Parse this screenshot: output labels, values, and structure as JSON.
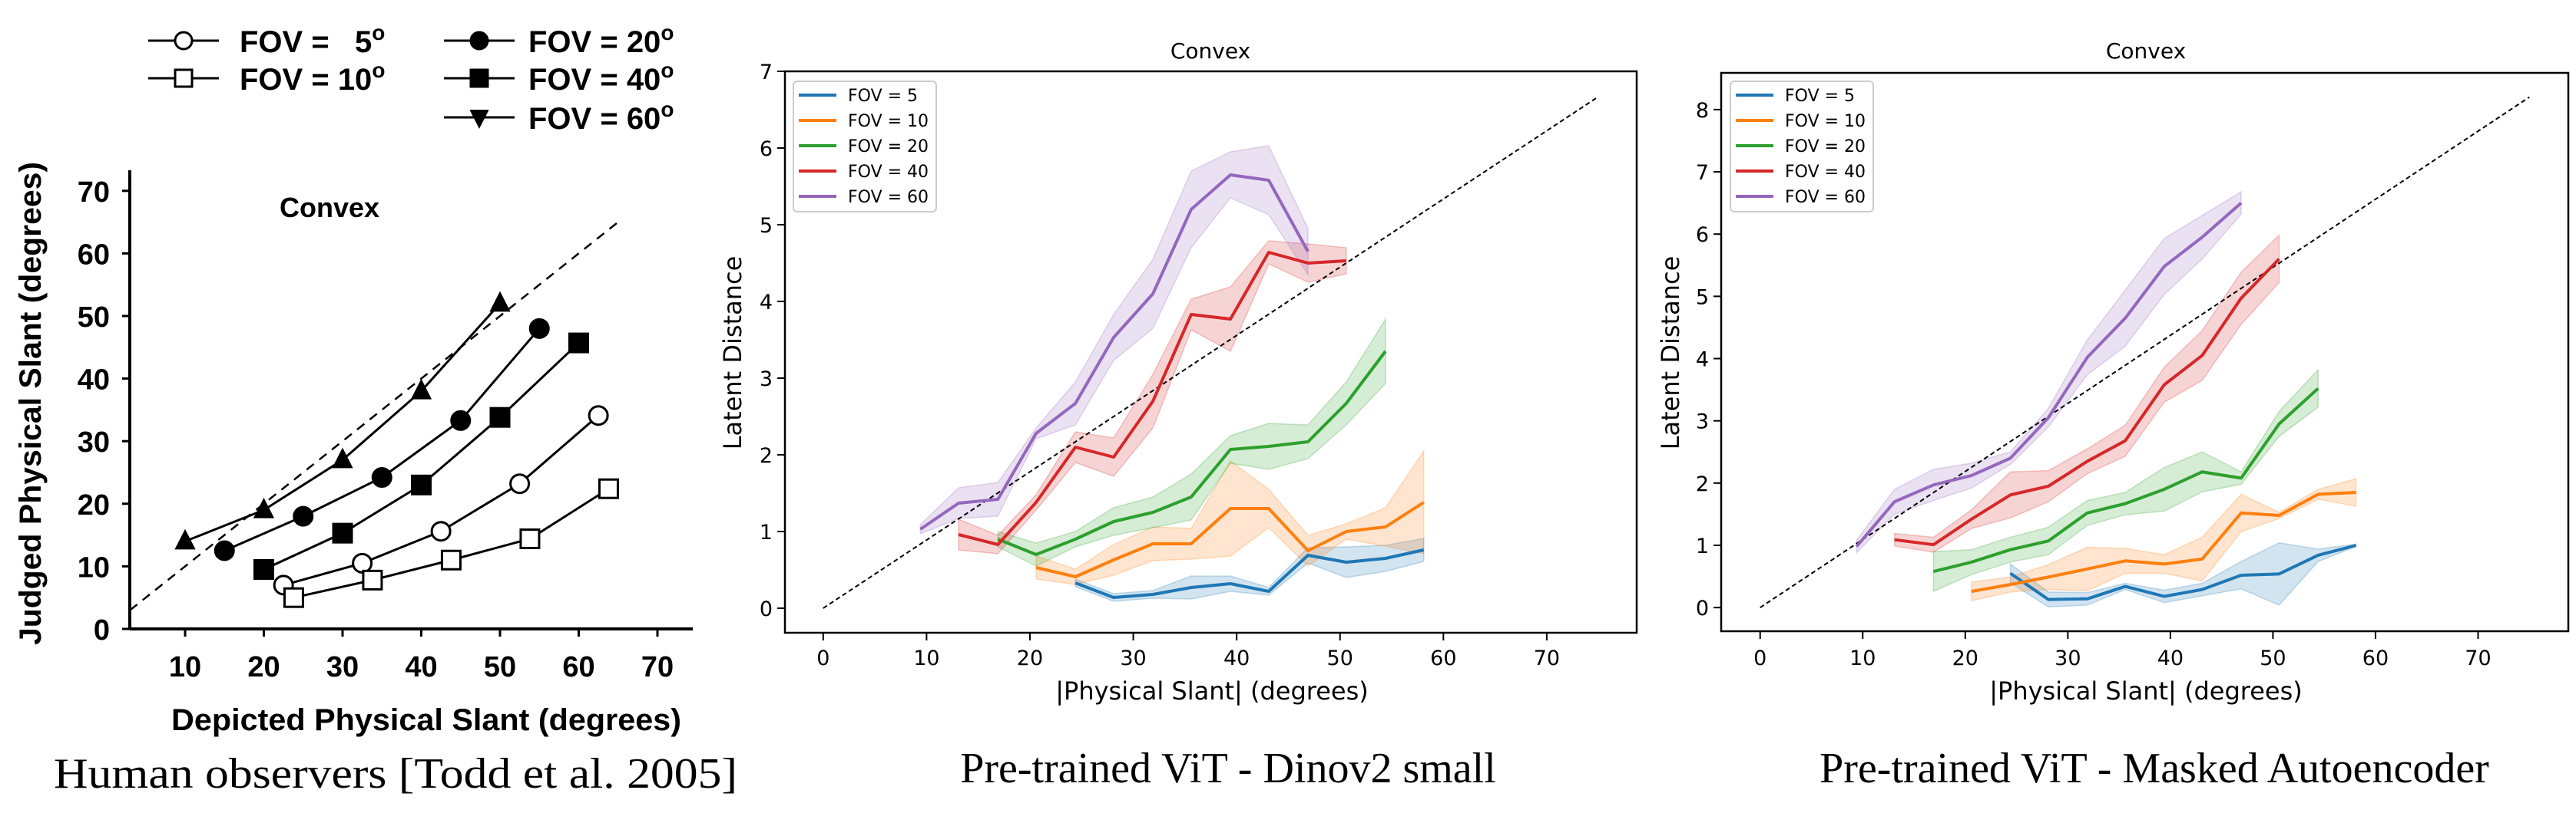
{
  "chart_data": [
    {
      "type": "line",
      "title": "Convex",
      "caption": "Human observers [Todd et al. 2005]",
      "xlabel": "Depicted Physical Slant (degrees)",
      "ylabel": "Judged Physical Slant (degrees)",
      "xlim": [
        2.2,
        74.6
      ],
      "ylim": [
        0,
        72.8
      ],
      "xticks": [
        "10",
        "20",
        "30",
        "40",
        "50",
        "60",
        "70"
      ],
      "xtick_values": [
        10,
        20,
        30,
        40,
        50,
        60,
        70
      ],
      "yticks": [
        "0",
        "10",
        "20",
        "30",
        "40",
        "50",
        "60",
        "70"
      ],
      "ytick_values": [
        0,
        10,
        20,
        30,
        40,
        50,
        60,
        70
      ],
      "reference_line": {
        "style": "dashed",
        "from": [
          3,
          3
        ],
        "to": [
          65,
          65
        ]
      },
      "legend_placement": "top",
      "series": [
        {
          "name": "FOV =   5",
          "deg": "o",
          "marker": "open-circle",
          "x": [
            22.5,
            32.5,
            42.5,
            52.5,
            62.5
          ],
          "y": [
            7,
            10.5,
            15.6,
            23.2,
            34.1
          ]
        },
        {
          "name": "FOV = 10",
          "deg": "o",
          "marker": "open-square",
          "x": [
            23.8,
            33.8,
            43.8,
            53.8,
            63.8
          ],
          "y": [
            5,
            7.8,
            11,
            14.4,
            22.4
          ]
        },
        {
          "name": "FOV = 20",
          "deg": "o",
          "marker": "filled-circle",
          "x": [
            15,
            25,
            35,
            45,
            55
          ],
          "y": [
            12.5,
            18,
            24.2,
            33.3,
            48
          ]
        },
        {
          "name": "FOV = 40",
          "deg": "o",
          "marker": "filled-square",
          "x": [
            20,
            30,
            40,
            50,
            60
          ],
          "y": [
            9.5,
            15.3,
            23,
            33.8,
            45.7
          ]
        },
        {
          "name": "FOV = 60",
          "deg": "o",
          "marker": "filled-triangle",
          "x": [
            10,
            20,
            30,
            40,
            50
          ],
          "y": [
            14,
            19,
            27,
            38,
            52
          ]
        }
      ]
    },
    {
      "type": "line",
      "title": "Convex",
      "caption": "Pre-trained ViT - Dinov2 small",
      "xlabel": "|Physical Slant| (degrees)",
      "ylabel": "Latent Distance",
      "xlim": [
        -3.7,
        78.7
      ],
      "ylim": [
        -0.32,
        7
      ],
      "xticks": [
        "0",
        "10",
        "20",
        "30",
        "40",
        "50",
        "60",
        "70"
      ],
      "xtick_values": [
        0,
        10,
        20,
        30,
        40,
        50,
        60,
        70
      ],
      "yticks": [
        "0",
        "1",
        "2",
        "3",
        "4",
        "5",
        "6",
        "7"
      ],
      "ytick_values": [
        0,
        1,
        2,
        3,
        4,
        5,
        6,
        7
      ],
      "reference_line": {
        "style": "dashed",
        "from": [
          0,
          0
        ],
        "to": [
          75,
          6.67
        ]
      },
      "legend_placement": "upper-left",
      "series": [
        {
          "name": "FOV = 5",
          "color": "#1f77b4",
          "x": [
            24.4,
            28.1,
            31.9,
            35.6,
            39.4,
            43.1,
            46.9,
            50.6,
            54.4,
            58.1
          ],
          "y": [
            0.33,
            0.14,
            0.18,
            0.27,
            0.32,
            0.22,
            0.69,
            0.6,
            0.65,
            0.76
          ],
          "ci": [
            0.05,
            0.05,
            0.05,
            0.15,
            0.1,
            0.05,
            0.1,
            0.2,
            0.17,
            0.15
          ]
        },
        {
          "name": "FOV = 10",
          "color": "#ff7f0e",
          "x": [
            20.6,
            24.4,
            28.1,
            31.9,
            35.6,
            39.4,
            43.1,
            46.9,
            50.6,
            54.4,
            58.1
          ],
          "y": [
            0.53,
            0.41,
            0.63,
            0.84,
            0.84,
            1.3,
            1.3,
            0.75,
            1.0,
            1.06,
            1.38
          ],
          "ci": [
            0.15,
            0.1,
            0.2,
            0.22,
            0.2,
            0.62,
            0.25,
            0.2,
            0.1,
            0.25,
            0.67
          ]
        },
        {
          "name": "FOV = 20",
          "color": "#2ca02c",
          "x": [
            16.9,
            20.6,
            24.4,
            28.1,
            31.9,
            35.6,
            39.4,
            43.1,
            46.9,
            50.6,
            54.4
          ],
          "y": [
            0.9,
            0.7,
            0.9,
            1.13,
            1.25,
            1.45,
            2.07,
            2.11,
            2.17,
            2.67,
            3.35
          ],
          "ci": [
            0.1,
            0.15,
            0.1,
            0.18,
            0.2,
            0.3,
            0.18,
            0.3,
            0.22,
            0.28,
            0.42
          ]
        },
        {
          "name": "FOV = 40",
          "color": "#d62728",
          "x": [
            13.1,
            16.9,
            20.6,
            24.4,
            28.1,
            31.9,
            35.6,
            39.4,
            43.1,
            46.9,
            50.6
          ],
          "y": [
            0.96,
            0.83,
            1.38,
            2.1,
            1.97,
            2.7,
            3.83,
            3.77,
            4.64,
            4.5,
            4.53
          ],
          "ci": [
            0.2,
            0.12,
            0.1,
            0.2,
            0.25,
            0.35,
            0.2,
            0.42,
            0.15,
            0.25,
            0.17
          ]
        },
        {
          "name": "FOV = 60",
          "color": "#9467bd",
          "x": [
            9.4,
            13.1,
            16.9,
            20.6,
            24.4,
            28.1,
            31.9,
            35.6,
            39.4,
            43.1,
            46.9
          ],
          "y": [
            1.03,
            1.37,
            1.42,
            2.28,
            2.67,
            3.53,
            4.1,
            5.2,
            5.65,
            5.58,
            4.65
          ],
          "ci": [
            0.06,
            0.2,
            0.22,
            0.07,
            0.28,
            0.3,
            0.45,
            0.5,
            0.3,
            0.45,
            0.3
          ]
        }
      ]
    },
    {
      "type": "line",
      "title": "Convex",
      "caption": "Pre-trained ViT - Masked Autoencoder",
      "xlabel": "|Physical Slant| (degrees)",
      "ylabel": "Latent Distance",
      "xlim": [
        -3.8,
        78.8
      ],
      "ylim": [
        -0.38,
        8.59
      ],
      "xticks": [
        "0",
        "10",
        "20",
        "30",
        "40",
        "50",
        "60",
        "70"
      ],
      "xtick_values": [
        0,
        10,
        20,
        30,
        40,
        50,
        60,
        70
      ],
      "yticks": [
        "0",
        "1",
        "2",
        "3",
        "4",
        "5",
        "6",
        "7",
        "8"
      ],
      "ytick_values": [
        0,
        1,
        2,
        3,
        4,
        5,
        6,
        7,
        8
      ],
      "reference_line": {
        "style": "dashed",
        "from": [
          0,
          0
        ],
        "to": [
          75,
          8.2
        ]
      },
      "legend_placement": "upper-left",
      "series": [
        {
          "name": "FOV = 5",
          "color": "#1f77b4",
          "x": [
            24.4,
            28.1,
            31.9,
            35.6,
            39.4,
            43.1,
            46.9,
            50.6,
            54.4,
            58.1
          ],
          "y": [
            0.55,
            0.13,
            0.14,
            0.34,
            0.18,
            0.29,
            0.52,
            0.54,
            0.84,
            1.0
          ],
          "ci": [
            0.15,
            0.12,
            0.1,
            0.05,
            0.1,
            0.1,
            0.22,
            0.5,
            0.1,
            0.02
          ]
        },
        {
          "name": "FOV = 10",
          "color": "#ff7f0e",
          "x": [
            20.6,
            24.4,
            28.1,
            31.9,
            35.6,
            39.4,
            43.1,
            46.9,
            50.6,
            54.4,
            58.1
          ],
          "y": [
            0.26,
            0.37,
            0.49,
            0.62,
            0.75,
            0.7,
            0.78,
            1.52,
            1.48,
            1.82,
            1.85
          ],
          "ci": [
            0.15,
            0.12,
            0.2,
            0.35,
            0.2,
            0.15,
            0.35,
            0.3,
            0.05,
            0.08,
            0.22
          ]
        },
        {
          "name": "FOV = 20",
          "color": "#2ca02c",
          "x": [
            16.9,
            20.6,
            24.4,
            28.1,
            31.9,
            35.6,
            39.4,
            43.1,
            46.9,
            50.6,
            54.4
          ],
          "y": [
            0.58,
            0.73,
            0.93,
            1.07,
            1.52,
            1.67,
            1.9,
            2.18,
            2.08,
            2.95,
            3.52
          ],
          "ci": [
            0.32,
            0.2,
            0.2,
            0.22,
            0.2,
            0.18,
            0.35,
            0.32,
            0.1,
            0.2,
            0.3
          ]
        },
        {
          "name": "FOV = 40",
          "color": "#d62728",
          "x": [
            13.1,
            16.9,
            20.6,
            24.4,
            28.1,
            31.9,
            35.6,
            39.4,
            43.1,
            46.9,
            50.6
          ],
          "y": [
            1.09,
            1.01,
            1.42,
            1.81,
            1.95,
            2.35,
            2.68,
            3.58,
            4.05,
            4.97,
            5.6
          ],
          "ci": [
            0.1,
            0.12,
            0.15,
            0.37,
            0.25,
            0.2,
            0.25,
            0.28,
            0.4,
            0.42,
            0.38
          ]
        },
        {
          "name": "FOV = 60",
          "color": "#9467bd",
          "x": [
            9.4,
            13.1,
            16.9,
            20.6,
            24.4,
            28.1,
            31.9,
            35.6,
            39.4,
            43.1,
            46.9
          ],
          "y": [
            0.98,
            1.7,
            1.97,
            2.12,
            2.4,
            3.05,
            4.02,
            4.65,
            5.48,
            5.95,
            6.5
          ],
          "ci": [
            0.1,
            0.2,
            0.25,
            0.2,
            0.1,
            0.15,
            0.28,
            0.45,
            0.45,
            0.35,
            0.18
          ]
        }
      ]
    }
  ]
}
